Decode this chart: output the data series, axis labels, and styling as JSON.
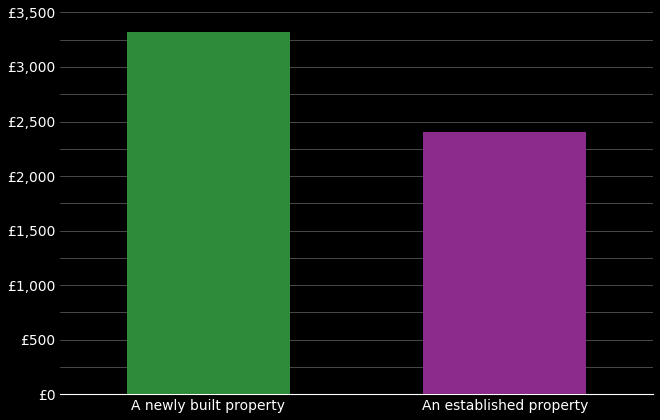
{
  "categories": [
    "A newly built property",
    "An established property"
  ],
  "values": [
    3325,
    2400
  ],
  "bar_colors": [
    "#2e8b3a",
    "#8b2b8b"
  ],
  "background_color": "#000000",
  "text_color": "#ffffff",
  "grid_color": "#555555",
  "ylim": [
    0,
    3500
  ],
  "yticks_major": [
    0,
    500,
    1000,
    1500,
    2000,
    2500,
    3000,
    3500
  ],
  "yticks_minor": [
    250,
    750,
    1250,
    1750,
    2250,
    2750,
    3250
  ],
  "figsize": [
    6.6,
    4.2
  ],
  "dpi": 100,
  "bar_width": 0.55
}
